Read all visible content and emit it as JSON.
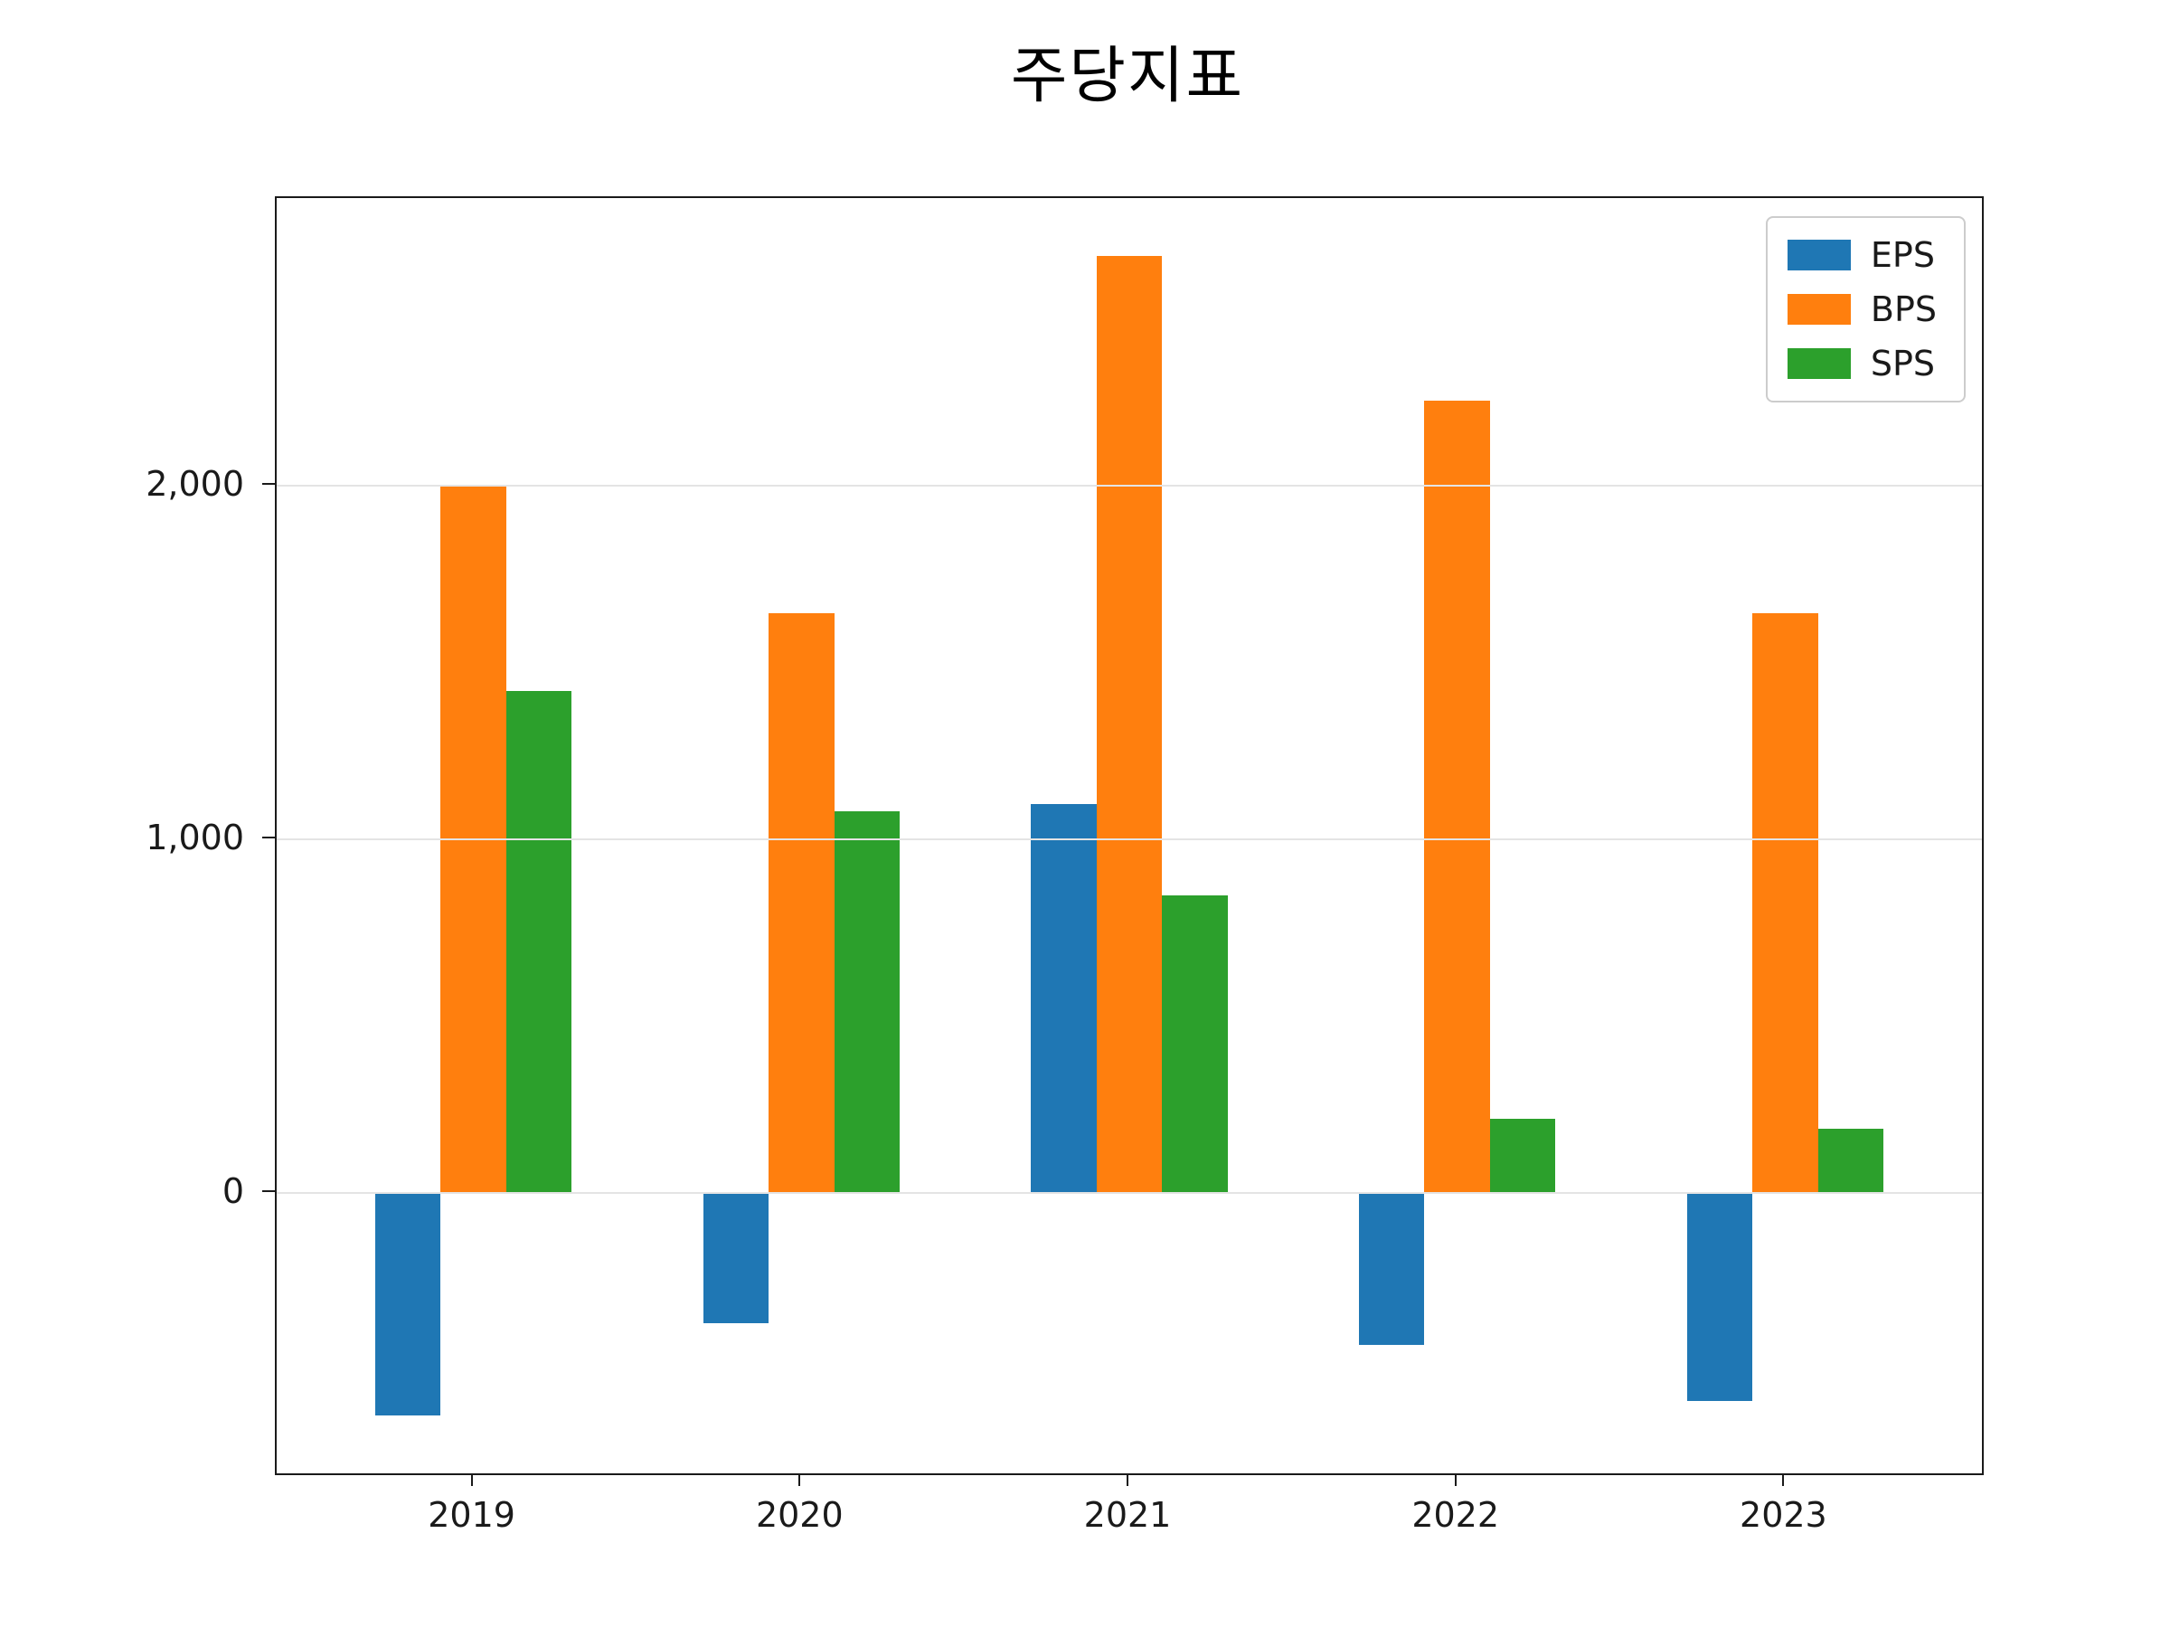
{
  "chart_data": {
    "type": "bar",
    "title": "주당지표",
    "categories": [
      "2019",
      "2020",
      "2021",
      "2022",
      "2023"
    ],
    "series": [
      {
        "name": "EPS",
        "color": "#1f77b4",
        "values": [
          -630,
          -370,
          1100,
          -430,
          -590
        ]
      },
      {
        "name": "BPS",
        "color": "#ff7f0e",
        "values": [
          2000,
          1640,
          2650,
          2240,
          1640
        ]
      },
      {
        "name": "SPS",
        "color": "#2ca02c",
        "values": [
          1420,
          1080,
          840,
          210,
          180
        ]
      }
    ],
    "ylim": [
      -794,
      2814
    ],
    "y_ticks": [
      0,
      1000,
      2000
    ],
    "y_tick_labels": [
      "0",
      "1,000",
      "2,000"
    ],
    "grid": true,
    "legend_position": "upper right",
    "background": "#ffffff"
  }
}
